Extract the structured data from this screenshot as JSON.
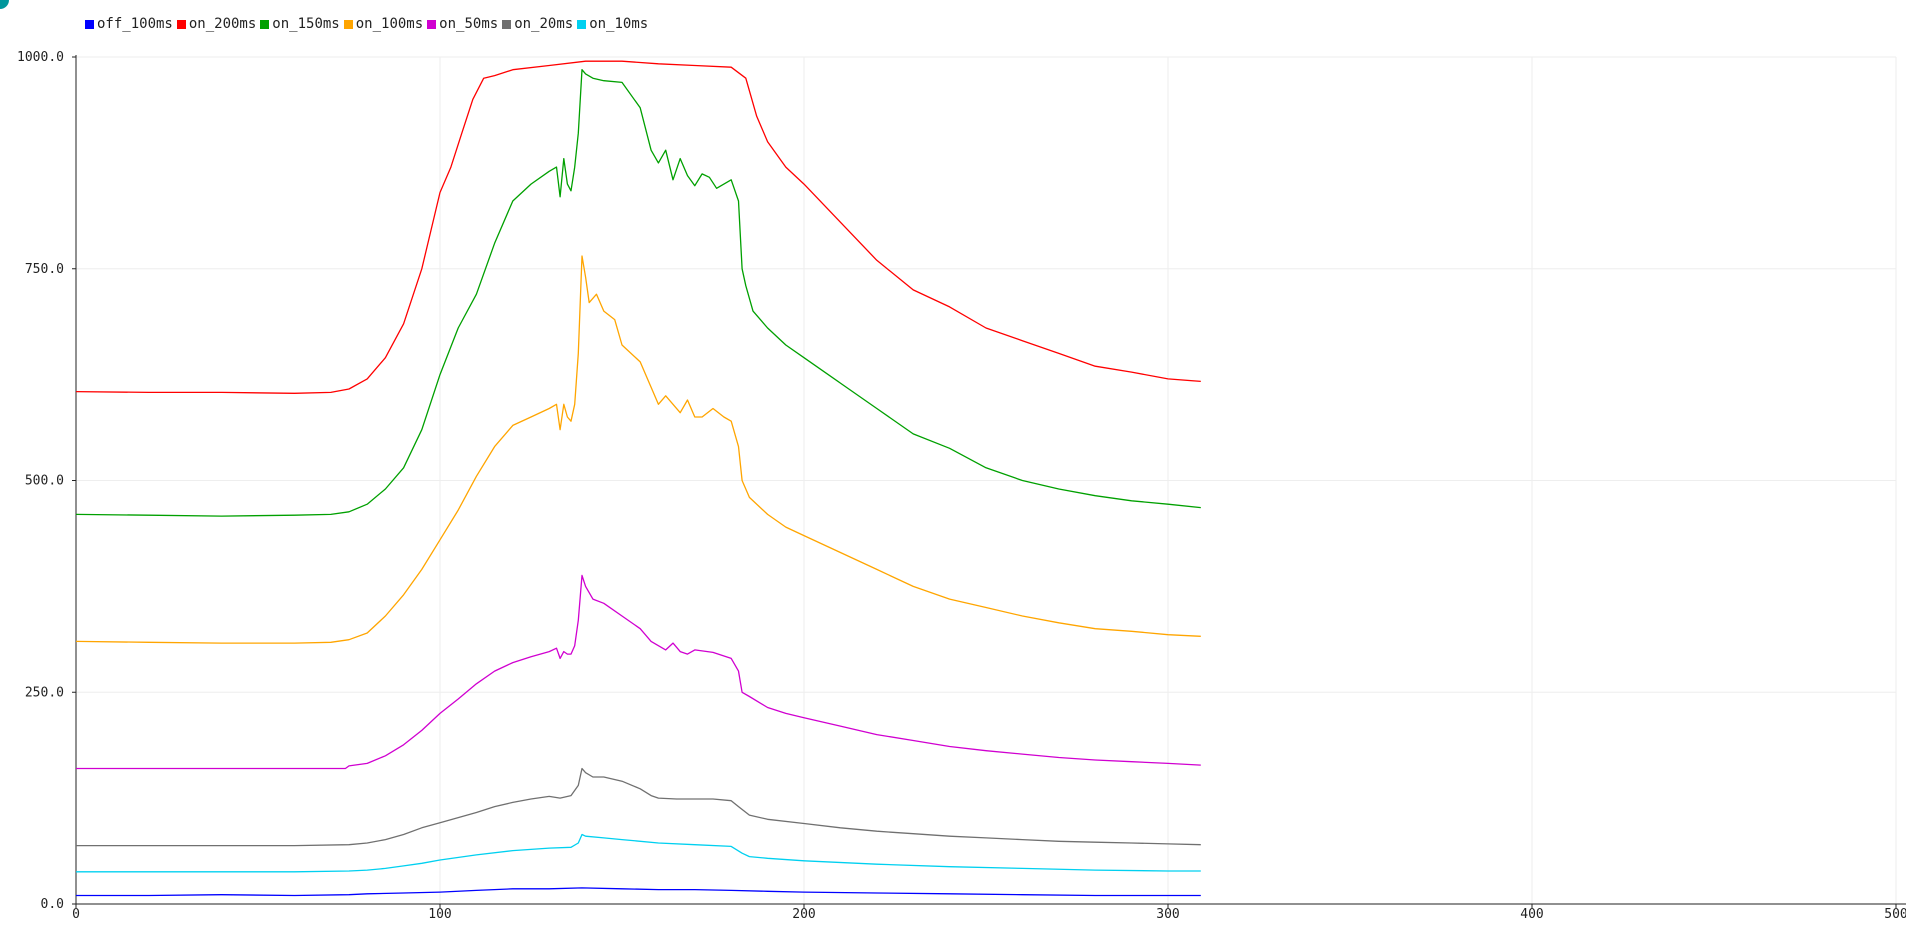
{
  "chart_data": {
    "type": "line",
    "title": "",
    "xlabel": "",
    "ylabel": "",
    "xlim": [
      0,
      500
    ],
    "ylim": [
      0,
      1000
    ],
    "x_ticks": [
      "0",
      "100",
      "200",
      "300",
      "400",
      "500"
    ],
    "y_ticks": [
      "0.0",
      "250.0",
      "500.0",
      "750.0",
      "1000.0"
    ],
    "grid": true,
    "legend_position": "top-left",
    "series": [
      {
        "name": "off_100ms",
        "color": "#0000ff",
        "points": [
          [
            0,
            10
          ],
          [
            20,
            10
          ],
          [
            40,
            11
          ],
          [
            60,
            10
          ],
          [
            75,
            11
          ],
          [
            80,
            12
          ],
          [
            90,
            13
          ],
          [
            100,
            14
          ],
          [
            110,
            16
          ],
          [
            120,
            18
          ],
          [
            130,
            18
          ],
          [
            139,
            19
          ],
          [
            150,
            18
          ],
          [
            160,
            17
          ],
          [
            170,
            17
          ],
          [
            180,
            16
          ],
          [
            190,
            15
          ],
          [
            200,
            14
          ],
          [
            220,
            13
          ],
          [
            240,
            12
          ],
          [
            260,
            11
          ],
          [
            280,
            10
          ],
          [
            300,
            10
          ],
          [
            309,
            10
          ]
        ]
      },
      {
        "name": "on_200ms",
        "color": "#ff0000",
        "points": [
          [
            0,
            605
          ],
          [
            20,
            604
          ],
          [
            40,
            604
          ],
          [
            60,
            603
          ],
          [
            70,
            604
          ],
          [
            75,
            608
          ],
          [
            80,
            620
          ],
          [
            85,
            645
          ],
          [
            90,
            685
          ],
          [
            95,
            750
          ],
          [
            100,
            840
          ],
          [
            103,
            870
          ],
          [
            106,
            910
          ],
          [
            109,
            950
          ],
          [
            112,
            975
          ],
          [
            115,
            978
          ],
          [
            120,
            985
          ],
          [
            130,
            990
          ],
          [
            140,
            995
          ],
          [
            150,
            995
          ],
          [
            160,
            992
          ],
          [
            170,
            990
          ],
          [
            180,
            988
          ],
          [
            184,
            975
          ],
          [
            187,
            930
          ],
          [
            190,
            900
          ],
          [
            195,
            870
          ],
          [
            200,
            850
          ],
          [
            210,
            805
          ],
          [
            220,
            760
          ],
          [
            230,
            725
          ],
          [
            240,
            705
          ],
          [
            250,
            680
          ],
          [
            260,
            665
          ],
          [
            270,
            650
          ],
          [
            280,
            635
          ],
          [
            290,
            628
          ],
          [
            300,
            620
          ],
          [
            309,
            617
          ]
        ]
      },
      {
        "name": "on_150ms",
        "color": "#00a000",
        "points": [
          [
            0,
            460
          ],
          [
            20,
            459
          ],
          [
            40,
            458
          ],
          [
            60,
            459
          ],
          [
            70,
            460
          ],
          [
            75,
            463
          ],
          [
            80,
            472
          ],
          [
            85,
            490
          ],
          [
            90,
            515
          ],
          [
            95,
            560
          ],
          [
            100,
            625
          ],
          [
            105,
            680
          ],
          [
            110,
            720
          ],
          [
            115,
            780
          ],
          [
            120,
            830
          ],
          [
            125,
            850
          ],
          [
            130,
            865
          ],
          [
            132,
            870
          ],
          [
            133,
            835
          ],
          [
            134,
            880
          ],
          [
            135,
            850
          ],
          [
            136,
            842
          ],
          [
            137,
            870
          ],
          [
            138,
            910
          ],
          [
            139,
            985
          ],
          [
            140,
            980
          ],
          [
            142,
            975
          ],
          [
            145,
            972
          ],
          [
            150,
            970
          ],
          [
            155,
            940
          ],
          [
            158,
            890
          ],
          [
            160,
            875
          ],
          [
            162,
            890
          ],
          [
            164,
            855
          ],
          [
            166,
            880
          ],
          [
            168,
            860
          ],
          [
            170,
            848
          ],
          [
            172,
            862
          ],
          [
            174,
            858
          ],
          [
            176,
            845
          ],
          [
            180,
            855
          ],
          [
            182,
            830
          ],
          [
            183,
            750
          ],
          [
            184,
            730
          ],
          [
            186,
            700
          ],
          [
            190,
            680
          ],
          [
            195,
            660
          ],
          [
            200,
            645
          ],
          [
            210,
            615
          ],
          [
            220,
            585
          ],
          [
            230,
            555
          ],
          [
            240,
            538
          ],
          [
            250,
            515
          ],
          [
            260,
            500
          ],
          [
            270,
            490
          ],
          [
            280,
            482
          ],
          [
            290,
            476
          ],
          [
            300,
            472
          ],
          [
            309,
            468
          ]
        ]
      },
      {
        "name": "on_100ms",
        "color": "#ffa500",
        "points": [
          [
            0,
            310
          ],
          [
            20,
            309
          ],
          [
            40,
            308
          ],
          [
            60,
            308
          ],
          [
            70,
            309
          ],
          [
            75,
            312
          ],
          [
            80,
            320
          ],
          [
            85,
            340
          ],
          [
            90,
            365
          ],
          [
            95,
            395
          ],
          [
            100,
            430
          ],
          [
            105,
            465
          ],
          [
            110,
            505
          ],
          [
            115,
            540
          ],
          [
            120,
            565
          ],
          [
            125,
            575
          ],
          [
            130,
            585
          ],
          [
            132,
            590
          ],
          [
            133,
            560
          ],
          [
            134,
            590
          ],
          [
            135,
            575
          ],
          [
            136,
            570
          ],
          [
            137,
            590
          ],
          [
            138,
            650
          ],
          [
            139,
            765
          ],
          [
            140,
            740
          ],
          [
            141,
            710
          ],
          [
            143,
            720
          ],
          [
            145,
            700
          ],
          [
            148,
            690
          ],
          [
            150,
            660
          ],
          [
            155,
            640
          ],
          [
            158,
            610
          ],
          [
            160,
            590
          ],
          [
            162,
            600
          ],
          [
            164,
            590
          ],
          [
            166,
            580
          ],
          [
            168,
            595
          ],
          [
            170,
            575
          ],
          [
            172,
            575
          ],
          [
            175,
            585
          ],
          [
            178,
            575
          ],
          [
            180,
            570
          ],
          [
            182,
            540
          ],
          [
            183,
            500
          ],
          [
            185,
            480
          ],
          [
            190,
            460
          ],
          [
            195,
            445
          ],
          [
            200,
            435
          ],
          [
            210,
            415
          ],
          [
            220,
            395
          ],
          [
            230,
            375
          ],
          [
            240,
            360
          ],
          [
            250,
            350
          ],
          [
            260,
            340
          ],
          [
            270,
            332
          ],
          [
            280,
            325
          ],
          [
            290,
            322
          ],
          [
            300,
            318
          ],
          [
            309,
            316
          ]
        ]
      },
      {
        "name": "on_50ms",
        "color": "#d000d0",
        "points": [
          [
            0,
            160
          ],
          [
            20,
            160
          ],
          [
            40,
            160
          ],
          [
            60,
            160
          ],
          [
            74,
            160
          ],
          [
            75,
            163
          ],
          [
            80,
            166
          ],
          [
            85,
            175
          ],
          [
            90,
            188
          ],
          [
            95,
            205
          ],
          [
            100,
            225
          ],
          [
            105,
            242
          ],
          [
            110,
            260
          ],
          [
            115,
            275
          ],
          [
            120,
            285
          ],
          [
            125,
            292
          ],
          [
            130,
            298
          ],
          [
            132,
            302
          ],
          [
            133,
            290
          ],
          [
            134,
            298
          ],
          [
            135,
            295
          ],
          [
            136,
            295
          ],
          [
            137,
            305
          ],
          [
            138,
            335
          ],
          [
            139,
            388
          ],
          [
            140,
            375
          ],
          [
            142,
            360
          ],
          [
            145,
            355
          ],
          [
            150,
            340
          ],
          [
            155,
            325
          ],
          [
            158,
            310
          ],
          [
            160,
            305
          ],
          [
            162,
            300
          ],
          [
            164,
            308
          ],
          [
            166,
            298
          ],
          [
            168,
            295
          ],
          [
            170,
            300
          ],
          [
            175,
            297
          ],
          [
            180,
            290
          ],
          [
            182,
            275
          ],
          [
            183,
            250
          ],
          [
            185,
            245
          ],
          [
            190,
            232
          ],
          [
            195,
            225
          ],
          [
            200,
            220
          ],
          [
            210,
            210
          ],
          [
            220,
            200
          ],
          [
            230,
            193
          ],
          [
            240,
            186
          ],
          [
            250,
            181
          ],
          [
            260,
            177
          ],
          [
            270,
            173
          ],
          [
            280,
            170
          ],
          [
            290,
            168
          ],
          [
            300,
            166
          ],
          [
            309,
            164
          ]
        ]
      },
      {
        "name": "on_20ms",
        "color": "#707070",
        "points": [
          [
            0,
            69
          ],
          [
            20,
            69
          ],
          [
            40,
            69
          ],
          [
            60,
            69
          ],
          [
            75,
            70
          ],
          [
            80,
            72
          ],
          [
            85,
            76
          ],
          [
            90,
            82
          ],
          [
            95,
            90
          ],
          [
            100,
            96
          ],
          [
            105,
            102
          ],
          [
            110,
            108
          ],
          [
            115,
            115
          ],
          [
            120,
            120
          ],
          [
            125,
            124
          ],
          [
            130,
            127
          ],
          [
            133,
            125
          ],
          [
            136,
            128
          ],
          [
            138,
            140
          ],
          [
            139,
            160
          ],
          [
            140,
            155
          ],
          [
            142,
            150
          ],
          [
            145,
            150
          ],
          [
            150,
            145
          ],
          [
            155,
            136
          ],
          [
            158,
            128
          ],
          [
            160,
            125
          ],
          [
            165,
            124
          ],
          [
            170,
            124
          ],
          [
            175,
            124
          ],
          [
            180,
            122
          ],
          [
            182,
            115
          ],
          [
            185,
            105
          ],
          [
            190,
            100
          ],
          [
            200,
            95
          ],
          [
            210,
            90
          ],
          [
            220,
            86
          ],
          [
            230,
            83
          ],
          [
            240,
            80
          ],
          [
            250,
            78
          ],
          [
            260,
            76
          ],
          [
            270,
            74
          ],
          [
            280,
            73
          ],
          [
            290,
            72
          ],
          [
            300,
            71
          ],
          [
            309,
            70
          ]
        ]
      },
      {
        "name": "on_10ms",
        "color": "#00d0f0",
        "points": [
          [
            0,
            38
          ],
          [
            20,
            38
          ],
          [
            40,
            38
          ],
          [
            60,
            38
          ],
          [
            75,
            39
          ],
          [
            80,
            40
          ],
          [
            85,
            42
          ],
          [
            90,
            45
          ],
          [
            95,
            48
          ],
          [
            100,
            52
          ],
          [
            110,
            58
          ],
          [
            120,
            63
          ],
          [
            130,
            66
          ],
          [
            136,
            67
          ],
          [
            138,
            72
          ],
          [
            139,
            82
          ],
          [
            140,
            80
          ],
          [
            145,
            78
          ],
          [
            150,
            76
          ],
          [
            160,
            72
          ],
          [
            170,
            70
          ],
          [
            180,
            68
          ],
          [
            183,
            60
          ],
          [
            185,
            56
          ],
          [
            190,
            54
          ],
          [
            200,
            51
          ],
          [
            220,
            47
          ],
          [
            240,
            44
          ],
          [
            260,
            42
          ],
          [
            280,
            40
          ],
          [
            300,
            39
          ],
          [
            309,
            39
          ]
        ]
      }
    ]
  }
}
